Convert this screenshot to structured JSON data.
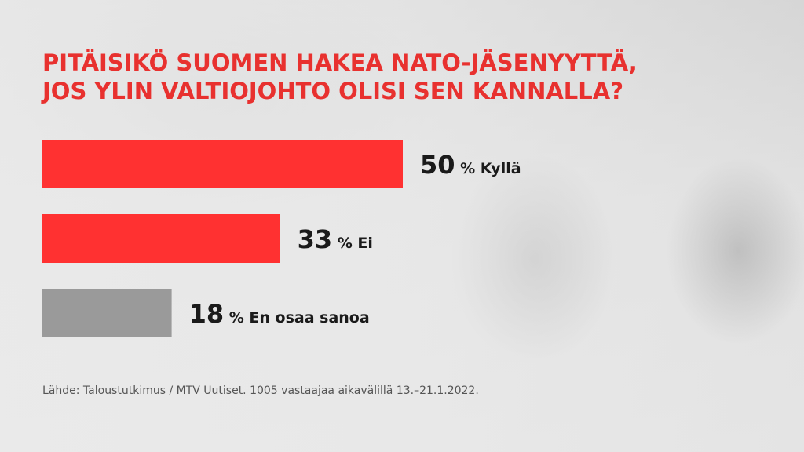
{
  "title_lines": [
    "PITÄISIKÖ SUOMEN HAKEA NATO-JÄSENYYTTÄ,",
    "JOS YLIN VALTIOJOHTO OLISI SEN KANNALLA?"
  ],
  "source": "Lähde: Taloustutkimus / MTV Uutiset. 1005 vastaajaa aikavälillä 13.–21.1.2022.",
  "colors": {
    "accent": "#ff3131",
    "neutral": "#9a9a9a",
    "title": "#e8312f",
    "label": "#1a1a1a"
  },
  "chart_data": {
    "type": "bar",
    "orientation": "horizontal",
    "categories": [
      "Kyllä",
      "Ei",
      "En osaa sanoa"
    ],
    "values": [
      50,
      33,
      18
    ],
    "value_suffix": "%",
    "bar_colors": [
      "#ff3131",
      "#ff3131",
      "#9a9a9a"
    ],
    "xlim": [
      0,
      100
    ],
    "grid": false,
    "legend": "none"
  }
}
